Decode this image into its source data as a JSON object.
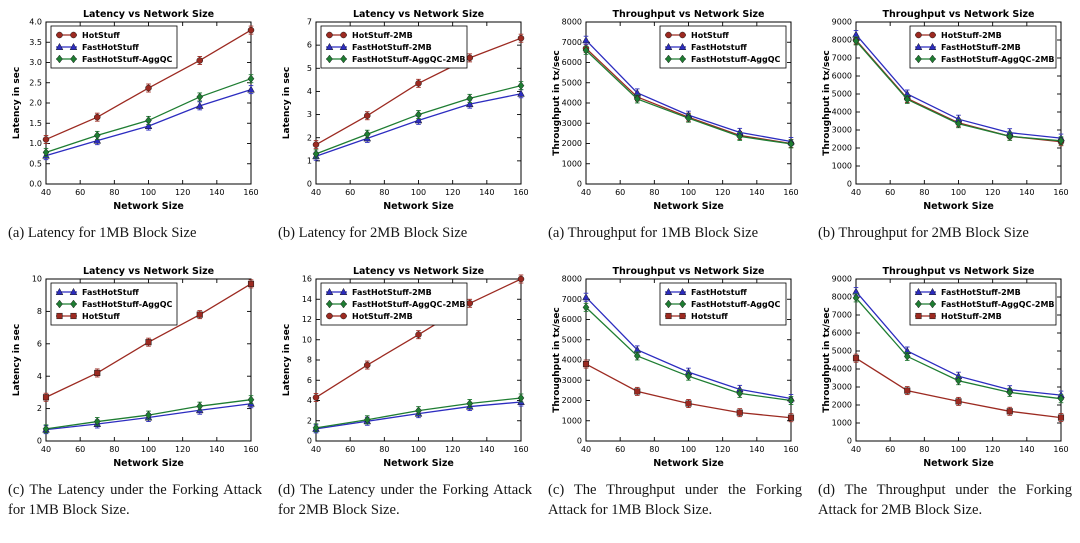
{
  "page": {
    "background": "#ffffff",
    "text_color": "#151515"
  },
  "colors": {
    "hotstuff_red": "#9c2a21",
    "fasthotstuff_blue": "#2c2cc0",
    "aggqc_green": "#1e7d32",
    "axis_black": "#000000"
  },
  "figures": [
    {
      "id": "latency-1mb",
      "caption": "(a) Latency for 1MB Block Size",
      "chart_data": {
        "type": "line",
        "title": "Latency vs Network Size",
        "xlabel": "Network Size",
        "ylabel": "Latency in sec",
        "x": [
          40,
          70,
          100,
          130,
          160
        ],
        "xlim": [
          40,
          160
        ],
        "xticks": [
          40,
          60,
          80,
          100,
          120,
          140,
          160
        ],
        "ylim": [
          0,
          4
        ],
        "yticks": [
          0,
          0.5,
          1,
          1.5,
          2,
          2.5,
          3,
          3.5,
          4
        ],
        "y_decimals": 1,
        "grid": false,
        "legend_pos": "upper-left",
        "series": [
          {
            "name": "HotStuff",
            "color": "#9c2a21",
            "marker": "circle",
            "values": [
              1.1,
              1.65,
              2.37,
              3.05,
              3.8
            ]
          },
          {
            "name": "FastHotStuff",
            "color": "#2c2cc0",
            "marker": "triangle",
            "values": [
              0.7,
              1.07,
              1.43,
              1.93,
              2.33
            ]
          },
          {
            "name": "FastHotStuff-AggQC",
            "color": "#1e7d32",
            "marker": "diamond",
            "values": [
              0.78,
              1.2,
              1.57,
              2.15,
              2.6
            ]
          }
        ]
      }
    },
    {
      "id": "latency-2mb",
      "caption": "(b) Latency for 2MB Block Size",
      "chart_data": {
        "type": "line",
        "title": "Latency vs Network Size",
        "xlabel": "Network Size",
        "ylabel": "Latency in sec",
        "x": [
          40,
          70,
          100,
          130,
          160
        ],
        "xlim": [
          40,
          160
        ],
        "xticks": [
          40,
          60,
          80,
          100,
          120,
          140,
          160
        ],
        "ylim": [
          0,
          7
        ],
        "yticks": [
          0,
          1,
          2,
          3,
          4,
          5,
          6,
          7
        ],
        "y_decimals": 0,
        "grid": false,
        "legend_pos": "upper-left",
        "series": [
          {
            "name": "HotStuff-2MB",
            "color": "#9c2a21",
            "marker": "circle",
            "values": [
              1.7,
              2.95,
              4.35,
              5.45,
              6.3
            ]
          },
          {
            "name": "FastHotStuff-2MB",
            "color": "#2c2cc0",
            "marker": "triangle",
            "values": [
              1.2,
              1.97,
              2.75,
              3.45,
              3.9
            ]
          },
          {
            "name": "FastHotStuff-AggQC-2MB",
            "color": "#1e7d32",
            "marker": "diamond",
            "values": [
              1.3,
              2.15,
              3.0,
              3.7,
              4.25
            ]
          }
        ]
      }
    },
    {
      "id": "throughput-1mb",
      "caption": "(a) Throughput for 1MB Block Size",
      "chart_data": {
        "type": "line",
        "title": "Throughput vs Network Size",
        "xlabel": "Network Size",
        "ylabel": "Throughput in tx/sec",
        "x": [
          40,
          70,
          100,
          130,
          160
        ],
        "xlim": [
          40,
          160
        ],
        "xticks": [
          40,
          60,
          80,
          100,
          120,
          140,
          160
        ],
        "ylim": [
          0,
          8000
        ],
        "yticks": [
          0,
          1000,
          2000,
          3000,
          4000,
          5000,
          6000,
          7000,
          8000
        ],
        "y_decimals": 0,
        "grid": false,
        "legend_pos": "upper-right",
        "series": [
          {
            "name": "HotStuff",
            "color": "#9c2a21",
            "marker": "circle",
            "values": [
              6700,
              4300,
              3300,
              2400,
              2000
            ]
          },
          {
            "name": "FastHotstuff",
            "color": "#2c2cc0",
            "marker": "triangle",
            "values": [
              7100,
              4500,
              3400,
              2550,
              2100
            ]
          },
          {
            "name": "FastHotstuff-AggQC",
            "color": "#1e7d32",
            "marker": "diamond",
            "values": [
              6600,
              4200,
              3250,
              2350,
              1980
            ]
          }
        ]
      }
    },
    {
      "id": "throughput-2mb",
      "caption": "(b) Throughput for 2MB Block Size",
      "chart_data": {
        "type": "line",
        "title": "Throughput vs Network Size",
        "xlabel": "Network Size",
        "ylabel": "Throughput in tx/sec",
        "x": [
          40,
          70,
          100,
          130,
          160
        ],
        "xlim": [
          40,
          160
        ],
        "xticks": [
          40,
          60,
          80,
          100,
          120,
          140,
          160
        ],
        "ylim": [
          0,
          9000
        ],
        "yticks": [
          0,
          1000,
          2000,
          3000,
          4000,
          5000,
          6000,
          7000,
          8000,
          9000
        ],
        "y_decimals": 0,
        "grid": false,
        "legend_pos": "upper-right",
        "series": [
          {
            "name": "HotStuff-2MB",
            "color": "#9c2a21",
            "marker": "circle",
            "values": [
              8000,
              4750,
              3400,
              2650,
              2350
            ]
          },
          {
            "name": "FastHotStuff-2MB",
            "color": "#2c2cc0",
            "marker": "triangle",
            "values": [
              8300,
              5000,
              3600,
              2850,
              2550
            ]
          },
          {
            "name": "FastHotStuff-AggQC-2MB",
            "color": "#1e7d32",
            "marker": "diamond",
            "values": [
              7950,
              4700,
              3350,
              2650,
              2400
            ]
          }
        ]
      }
    },
    {
      "id": "latency-forking-1mb",
      "caption": "(c) The Latency under the Forking Attack for 1MB Block Size.",
      "chart_data": {
        "type": "line",
        "title": "Latency vs Network Size",
        "xlabel": "Network Size",
        "ylabel": "Latency in sec",
        "x": [
          40,
          70,
          100,
          130,
          160
        ],
        "xlim": [
          40,
          160
        ],
        "xticks": [
          40,
          60,
          80,
          100,
          120,
          140,
          160
        ],
        "ylim": [
          0,
          10
        ],
        "yticks": [
          0,
          2,
          4,
          6,
          8,
          10
        ],
        "y_decimals": 0,
        "grid": false,
        "legend_pos": "upper-left",
        "series": [
          {
            "name": "FastHotStuff",
            "color": "#2c2cc0",
            "marker": "triangle",
            "values": [
              0.7,
              1.05,
              1.45,
              1.9,
              2.3
            ]
          },
          {
            "name": "FastHotStuff-AggQC",
            "color": "#1e7d32",
            "marker": "diamond",
            "values": [
              0.75,
              1.2,
              1.6,
              2.15,
              2.55
            ]
          },
          {
            "name": "HotStuff",
            "color": "#9c2a21",
            "marker": "square",
            "values": [
              2.7,
              4.2,
              6.1,
              7.8,
              9.7
            ]
          }
        ]
      }
    },
    {
      "id": "latency-forking-2mb",
      "caption": "(d) The Latency under the Forking Attack for 2MB Block Size.",
      "chart_data": {
        "type": "line",
        "title": "Latency vs Network Size",
        "xlabel": "Network Size",
        "ylabel": "Latency in sec",
        "x": [
          40,
          70,
          100,
          130,
          160
        ],
        "xlim": [
          40,
          160
        ],
        "xticks": [
          40,
          60,
          80,
          100,
          120,
          140,
          160
        ],
        "ylim": [
          0,
          16
        ],
        "yticks": [
          0,
          2,
          4,
          6,
          8,
          10,
          12,
          14,
          16
        ],
        "y_decimals": 0,
        "grid": false,
        "legend_pos": "upper-left",
        "series": [
          {
            "name": "FastHotStuff-2MB",
            "color": "#2c2cc0",
            "marker": "triangle",
            "values": [
              1.2,
              1.95,
              2.7,
              3.4,
              3.85
            ]
          },
          {
            "name": "FastHotStuff-AggQC-2MB",
            "color": "#1e7d32",
            "marker": "diamond",
            "values": [
              1.3,
              2.1,
              3.0,
              3.7,
              4.25
            ]
          },
          {
            "name": "HotStuff-2MB",
            "color": "#9c2a21",
            "marker": "circle",
            "values": [
              4.3,
              7.5,
              10.5,
              13.6,
              16.0
            ]
          }
        ]
      }
    },
    {
      "id": "throughput-forking-1mb",
      "caption": "(c) The Throughput under the Forking Attack for 1MB Block Size.",
      "chart_data": {
        "type": "line",
        "title": "Throughput vs Network Size",
        "xlabel": "Network Size",
        "ylabel": "Throughput in tx/sec",
        "x": [
          40,
          70,
          100,
          130,
          160
        ],
        "xlim": [
          40,
          160
        ],
        "xticks": [
          40,
          60,
          80,
          100,
          120,
          140,
          160
        ],
        "ylim": [
          0,
          8000
        ],
        "yticks": [
          0,
          1000,
          2000,
          3000,
          4000,
          5000,
          6000,
          7000,
          8000
        ],
        "y_decimals": 0,
        "grid": false,
        "legend_pos": "upper-right",
        "series": [
          {
            "name": "FastHotstuff",
            "color": "#2c2cc0",
            "marker": "triangle",
            "values": [
              7100,
              4500,
              3400,
              2550,
              2100
            ]
          },
          {
            "name": "FastHotstuff-AggQC",
            "color": "#1e7d32",
            "marker": "diamond",
            "values": [
              6600,
              4200,
              3200,
              2350,
              2000
            ]
          },
          {
            "name": "Hotstuff",
            "color": "#9c2a21",
            "marker": "square",
            "values": [
              3800,
              2450,
              1850,
              1400,
              1150
            ]
          }
        ]
      }
    },
    {
      "id": "throughput-forking-2mb",
      "caption": "(d) The Throughput under the Forking Attack for 2MB Block Size.",
      "chart_data": {
        "type": "line",
        "title": "Throughput vs Network Size",
        "xlabel": "Network Size",
        "ylabel": "Throughput in tx/sec",
        "x": [
          40,
          70,
          100,
          130,
          160
        ],
        "xlim": [
          40,
          160
        ],
        "xticks": [
          40,
          60,
          80,
          100,
          120,
          140,
          160
        ],
        "ylim": [
          0,
          9000
        ],
        "yticks": [
          0,
          1000,
          2000,
          3000,
          4000,
          5000,
          6000,
          7000,
          8000,
          9000
        ],
        "y_decimals": 0,
        "grid": false,
        "legend_pos": "upper-right",
        "series": [
          {
            "name": "FastHotStuff-2MB",
            "color": "#2c2cc0",
            "marker": "triangle",
            "values": [
              8300,
              5000,
              3600,
              2850,
              2550
            ]
          },
          {
            "name": "FastHotStuff-AggQC-2MB",
            "color": "#1e7d32",
            "marker": "diamond",
            "values": [
              7950,
              4700,
              3350,
              2700,
              2350
            ]
          },
          {
            "name": "HotStuff-2MB",
            "color": "#9c2a21",
            "marker": "square",
            "values": [
              4600,
              2800,
              2200,
              1650,
              1300
            ]
          }
        ]
      }
    }
  ]
}
